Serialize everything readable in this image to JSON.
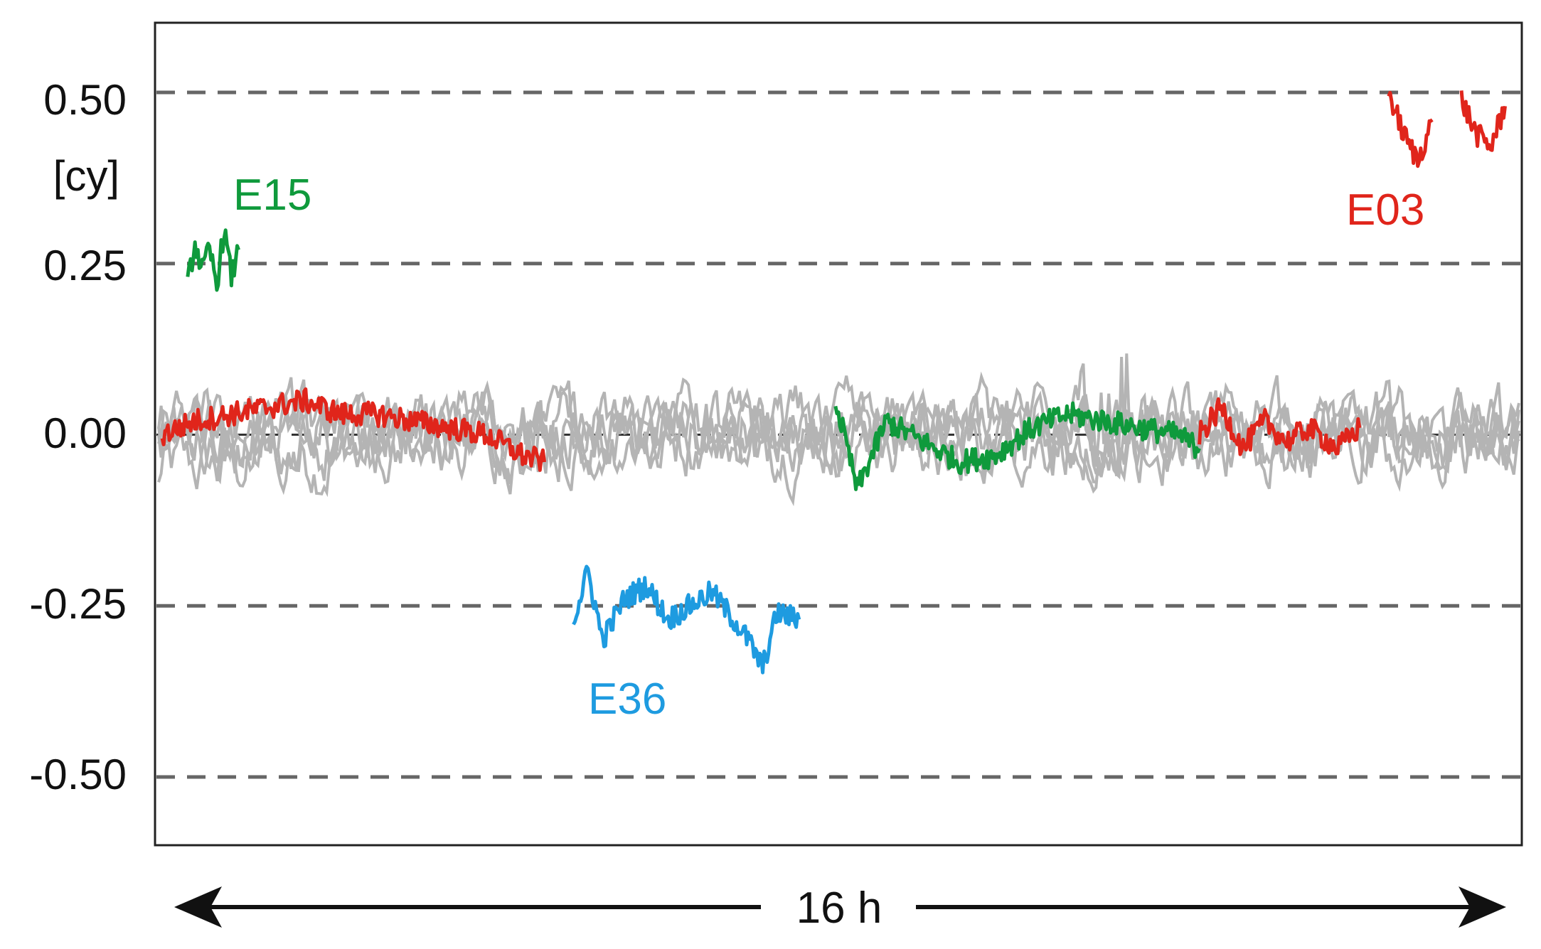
{
  "chart_data": {
    "type": "line",
    "title": "",
    "xlabel": "",
    "ylabel": "[cy]",
    "ylim": [
      -0.6,
      0.6
    ],
    "yticks": [
      0.5,
      0.25,
      0.0,
      -0.25,
      -0.5
    ],
    "ytick_labels": [
      "0.50",
      "0.25",
      "0.00",
      "-0.25",
      "-0.50"
    ],
    "grid": "dashed horizontal lines at y ticks",
    "time_span_label": "16 h",
    "x_unit": "h",
    "xlim": [
      0,
      16
    ],
    "background_series": {
      "color": "#b4b4b4",
      "description_count": 5,
      "amplitude": 0.04
    },
    "series": [
      {
        "name": "E15",
        "color": "#0f9a3c",
        "segments": [
          {
            "x": [
              0.4,
              0.5,
              0.6,
              0.7,
              0.8,
              0.9,
              1.0,
              1.1
            ],
            "y": [
              0.22,
              0.28,
              0.24,
              0.27,
              0.22,
              0.3,
              0.23,
              0.27
            ]
          },
          {
            "x": [
              9.3,
              9.6,
              10.0,
              10.5,
              11.0,
              11.5,
              12.0,
              12.5,
              13.0,
              13.5,
              14.0,
              14.3
            ],
            "y": [
              0.05,
              -0.08,
              0.02,
              -0.01,
              -0.04,
              -0.03,
              0.01,
              0.03,
              0.02,
              0.01,
              0.0,
              -0.02
            ]
          }
        ]
      },
      {
        "name": "E36",
        "color": "#1e9be0",
        "segments": [
          {
            "x": [
              5.7,
              5.9,
              6.1,
              6.4,
              6.7,
              7.0,
              7.3,
              7.6,
              7.9,
              8.1,
              8.3,
              8.5,
              8.8
            ],
            "y": [
              -0.27,
              -0.2,
              -0.3,
              -0.24,
              -0.22,
              -0.27,
              -0.25,
              -0.23,
              -0.27,
              -0.3,
              -0.34,
              -0.26,
              -0.27
            ]
          }
        ]
      },
      {
        "name": "E03",
        "color": "#e0251b",
        "segments": [
          {
            "x": [
              0.05,
              0.5,
              1.0,
              1.5,
              2.0,
              2.5,
              3.0,
              3.5,
              4.0,
              4.5,
              5.0,
              5.3
            ],
            "y": [
              0.0,
              0.02,
              0.03,
              0.04,
              0.05,
              0.03,
              0.03,
              0.02,
              0.01,
              0.0,
              -0.03,
              -0.04
            ]
          },
          {
            "x": [
              14.3,
              14.6,
              14.9,
              15.2,
              15.5,
              15.8,
              16.2,
              16.5
            ],
            "y": [
              0.0,
              0.04,
              -0.02,
              0.02,
              -0.01,
              0.01,
              -0.02,
              0.01
            ]
          },
          {
            "x": [
              16.9,
              17.1,
              17.3,
              17.5
            ],
            "y": [
              0.5,
              0.44,
              0.4,
              0.46
            ]
          },
          {
            "x": [
              17.9,
              18.1,
              18.3,
              18.5
            ],
            "y": [
              0.49,
              0.44,
              0.42,
              0.48
            ]
          }
        ]
      }
    ],
    "series_labels": [
      {
        "text": "E15",
        "color": "#0f9a3c"
      },
      {
        "text": "E36",
        "color": "#1e9be0"
      },
      {
        "text": "E03",
        "color": "#e0251b"
      }
    ]
  }
}
